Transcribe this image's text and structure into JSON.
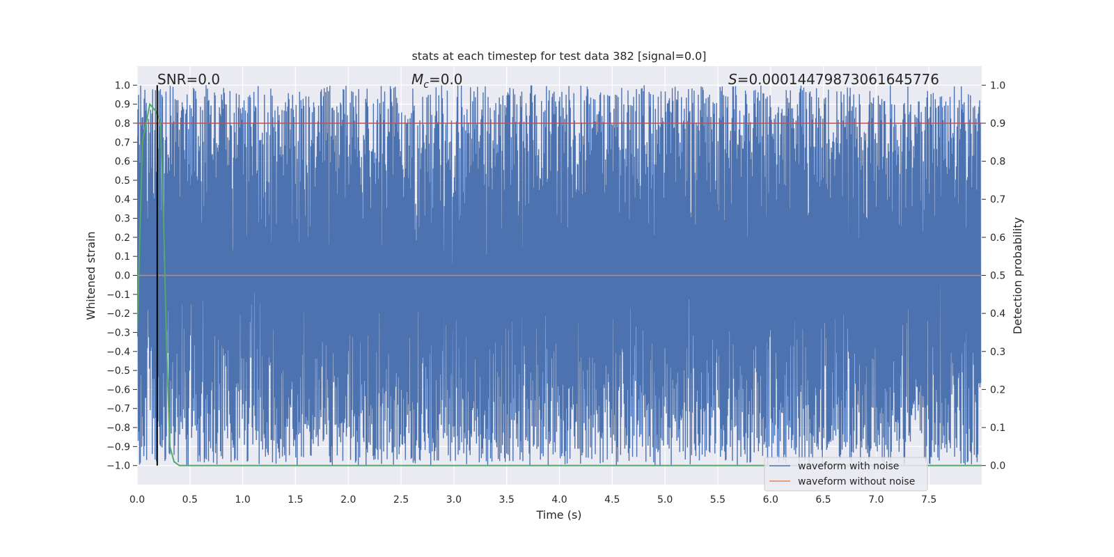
{
  "chart_data": {
    "type": "line",
    "title": "stats at each timestep for test data 382 [signal=0.0]",
    "xlabel": "Time (s)",
    "ylabel": "Whitened strain",
    "y2label": "Detection probability",
    "xlim": [
      0.0,
      8.0
    ],
    "ylim": [
      -1.1,
      1.1
    ],
    "y2lim": [
      -0.05,
      1.05
    ],
    "x_ticks": [
      "0.0",
      "0.5",
      "1.0",
      "1.5",
      "2.0",
      "2.5",
      "3.0",
      "3.5",
      "4.0",
      "4.5",
      "5.0",
      "5.5",
      "6.0",
      "6.5",
      "7.0",
      "7.5"
    ],
    "y_ticks": [
      "1.0",
      "0.9",
      "0.8",
      "0.7",
      "0.6",
      "0.5",
      "0.4",
      "0.3",
      "0.2",
      "0.1",
      "0.0",
      "−0.1",
      "−0.2",
      "−0.3",
      "−0.4",
      "−0.5",
      "−0.6",
      "−0.7",
      "−0.8",
      "−0.9",
      "−1.0"
    ],
    "y2_ticks": [
      "1.0",
      "0.9",
      "0.8",
      "0.7",
      "0.6",
      "0.5",
      "0.4",
      "0.3",
      "0.2",
      "0.1",
      "0.0"
    ],
    "grid": true,
    "legend_position": "lower-right",
    "annotations": {
      "snr": "SNR=0.0",
      "mc_symbol": "M",
      "mc_sub": "c",
      "mc_value": "=0.0",
      "s_symbol": "S",
      "s_value": "=0.00014479873061645776"
    },
    "series": [
      {
        "name": "waveform with noise",
        "axis": "left",
        "color": "#4c72b0",
        "description": "dense noise waveform spanning roughly -1.0 to 1.0 across 0–8 s"
      },
      {
        "name": "waveform without noise",
        "axis": "left",
        "color": "#dd8452",
        "values": [
          [
            0.0,
            0.0
          ],
          [
            8.0,
            0.0
          ]
        ]
      },
      {
        "axis": "right",
        "color": "#55a868",
        "values": [
          [
            0.0,
            0.35
          ],
          [
            0.05,
            0.85
          ],
          [
            0.12,
            0.95
          ],
          [
            0.18,
            0.93
          ],
          [
            0.22,
            0.9
          ],
          [
            0.25,
            0.65
          ],
          [
            0.28,
            0.3
          ],
          [
            0.31,
            0.05
          ],
          [
            0.35,
            0.01
          ],
          [
            0.4,
            0.0
          ],
          [
            8.0,
            0.0
          ]
        ]
      },
      {
        "axis": "right",
        "color": "#c44e52",
        "values": [
          [
            0.0,
            0.9
          ],
          [
            8.0,
            0.9
          ]
        ]
      },
      {
        "axis": "left",
        "color": "#000000",
        "type": "vline",
        "x": 0.19
      }
    ]
  }
}
